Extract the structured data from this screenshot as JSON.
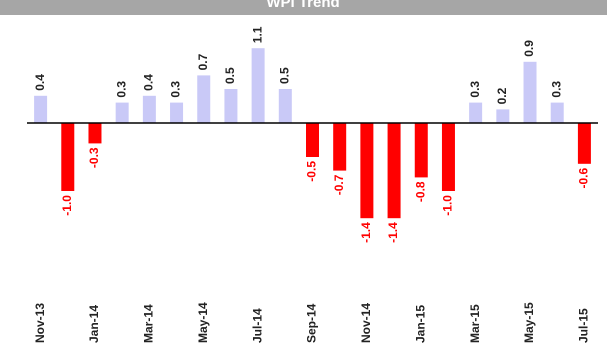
{
  "chart_data": {
    "type": "bar",
    "title": "WPI Trend",
    "categories": [
      "Nov-13",
      null,
      "Jan-14",
      null,
      "Mar-14",
      null,
      "May-14",
      null,
      "Jul-14",
      null,
      "Sep-14",
      null,
      "Nov-14",
      null,
      "Jan-15",
      null,
      "Mar-15",
      null,
      "May-15",
      null,
      "Jul-15"
    ],
    "values": [
      0.4,
      -1.0,
      -0.3,
      0.3,
      0.4,
      0.3,
      0.7,
      0.5,
      1.1,
      0.5,
      -0.5,
      -0.7,
      -1.4,
      -1.4,
      -0.8,
      -1.0,
      0.3,
      0.2,
      0.9,
      0.3,
      -0.6
    ],
    "value_labels": [
      "0.4",
      "-1.0",
      "-0.3",
      "0.3",
      "0.4",
      "0.3",
      "0.7",
      "0.5",
      "1.1",
      "0.5",
      "-0.5",
      "-0.7",
      "-1.4",
      "-1.4",
      "-0.8",
      "-1.0",
      "0.3",
      "0.2",
      "0.9",
      "0.3",
      "-0.6"
    ],
    "color": "#c9c9f7",
    "negative_color": "#ff0000",
    "ylim": [
      -1.6,
      1.2
    ]
  }
}
